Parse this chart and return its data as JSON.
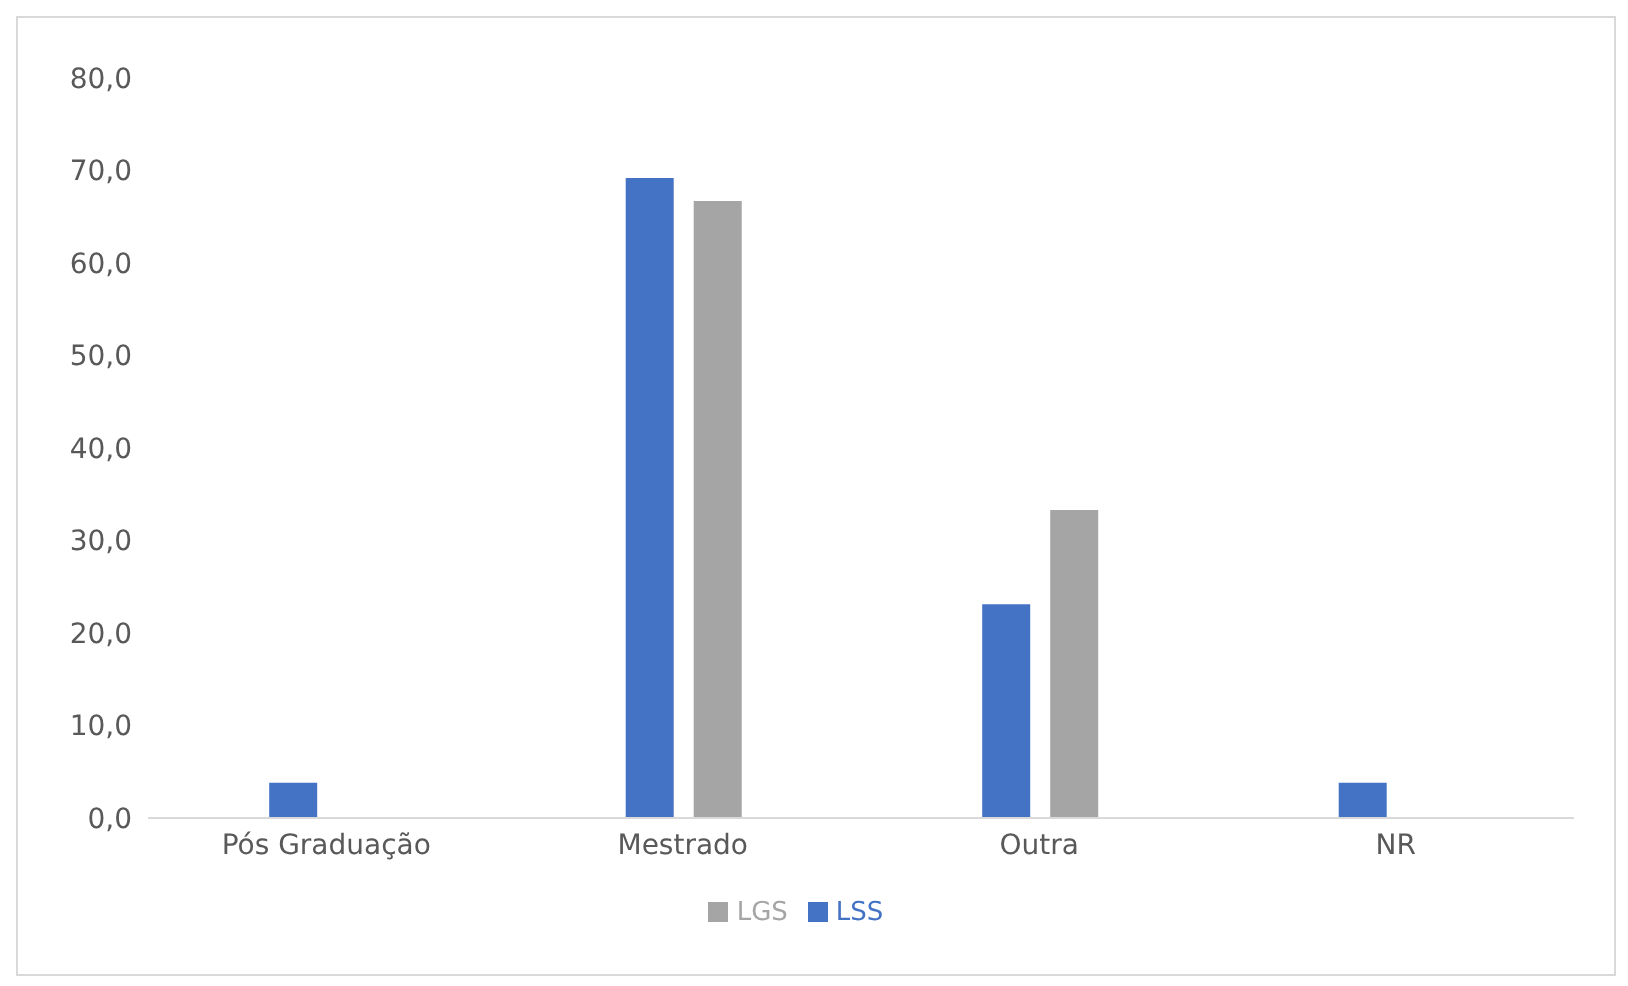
{
  "chart_data": {
    "type": "bar",
    "categories": [
      "Pós Graduação",
      "Mestrado",
      "Outra",
      "NR"
    ],
    "series": [
      {
        "name": "LSS",
        "color": "#4472c4",
        "values": [
          3.8,
          69.2,
          23.1,
          3.8
        ]
      },
      {
        "name": "LGS",
        "color": "#a5a5a5",
        "values": [
          0,
          66.7,
          33.3,
          0
        ]
      }
    ],
    "ylim": [
      0,
      80
    ],
    "yticks": [
      {
        "value": 0,
        "label": "0,0"
      },
      {
        "value": 10,
        "label": "10,0"
      },
      {
        "value": 20,
        "label": "20,0"
      },
      {
        "value": 30,
        "label": "30,0"
      },
      {
        "value": 40,
        "label": "40,0"
      },
      {
        "value": 50,
        "label": "50,0"
      },
      {
        "value": 60,
        "label": "60,0"
      },
      {
        "value": 70,
        "label": "70,0"
      },
      {
        "value": 80,
        "label": "80,0"
      }
    ],
    "grid": false,
    "legend": "bottom"
  }
}
